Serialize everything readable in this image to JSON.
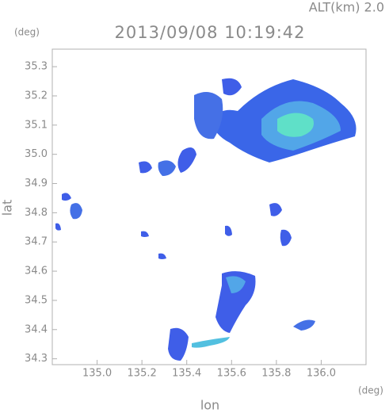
{
  "chart_data": {
    "type": "map",
    "title": "2013/09/08 10:19:42",
    "subtitle": "ALT(km) 2.0",
    "x_label": "lon",
    "y_label": "lat",
    "x_unit": "(deg)",
    "y_unit": "(deg)",
    "xlim": [
      134.8,
      136.2
    ],
    "ylim": [
      34.28,
      35.36
    ],
    "xticks": [
      {
        "value": 135,
        "label": "135.0"
      },
      135.2,
      135.4,
      135.6,
      135.8,
      {
        "value": 136,
        "label": "136.0"
      }
    ],
    "yticks": [
      34.3,
      34.4,
      34.5,
      34.6,
      34.7,
      34.8,
      34.9,
      {
        "value": 35,
        "label": "35.0"
      },
      35.1,
      35.2,
      35.3
    ]
  }
}
